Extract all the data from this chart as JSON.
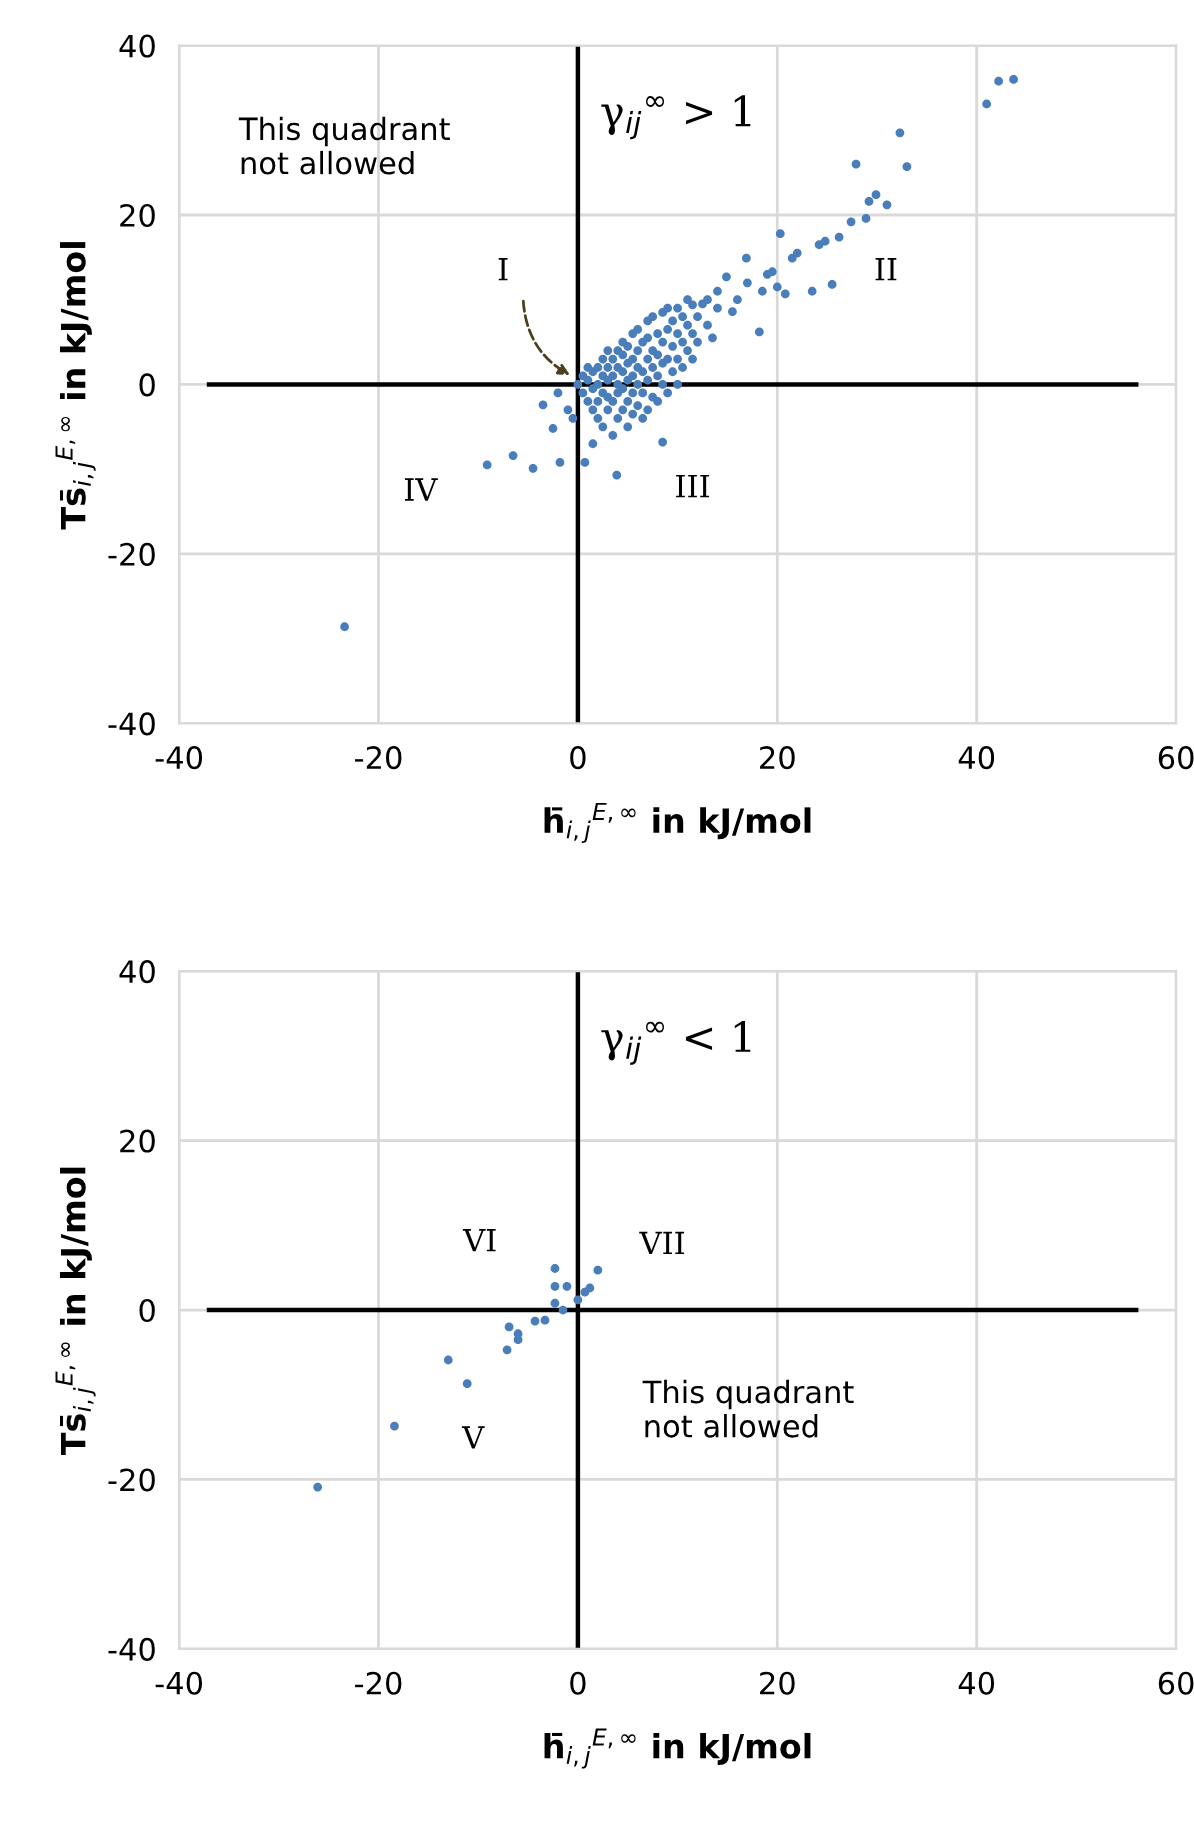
{
  "chart_data": [
    {
      "type": "scatter",
      "xlabel": "h̄$_{i,j}$$^{E,∞}$ in kJ/mol",
      "ylabel": "Ts̄$_{i,j}$$^{E,∞}$ in kJ/mol",
      "xlim": [
        -40,
        60
      ],
      "xticks": [
        -40,
        -20,
        0,
        20,
        40,
        60
      ],
      "ylim": [
        -40,
        40
      ],
      "yticks": [
        -40,
        -20,
        0,
        20,
        40
      ],
      "grid": true,
      "marker": "circle",
      "annotations": [
        "γ$_{ij}$$^{∞}$ > 1",
        "This quadrant\nnot allowed",
        "I",
        "II",
        "III",
        "IV"
      ],
      "series": [
        {
          "color": "#4a7ebb",
          "x": [
            0,
            0.5,
            0.5,
            1,
            1,
            1,
            1.5,
            1.5,
            1.5,
            2,
            2,
            2,
            2,
            2.5,
            2.5,
            2.5,
            2.5,
            3,
            3,
            3,
            3,
            3,
            3.5,
            3.5,
            3.5,
            3.5,
            4,
            4,
            4,
            4,
            4,
            4.5,
            4.5,
            4.5,
            4.5,
            4.5,
            5,
            5,
            5,
            5,
            5,
            5.5,
            5.5,
            5.5,
            5.5,
            5.5,
            6,
            6,
            6,
            6,
            6,
            6.5,
            6.5,
            6.5,
            6.5,
            7,
            7,
            7,
            7,
            7,
            7.5,
            7.5,
            7.5,
            7.5,
            8,
            8,
            8,
            8,
            8.5,
            8.5,
            8.5,
            8.5,
            9,
            9,
            9,
            9,
            9.5,
            9.5,
            9.5,
            10,
            10,
            10,
            10,
            10.5,
            10.5,
            10.5,
            11,
            11,
            11,
            11.5,
            11.5,
            12,
            12,
            12.5,
            13,
            13,
            13.5,
            14,
            14,
            15.5,
            14.9,
            16,
            16.9,
            17,
            18.2,
            18.5,
            19,
            19.5,
            20,
            20.3,
            20.8,
            21.5,
            22,
            23.5,
            24.2,
            24.8,
            25.5,
            26.2,
            27.4,
            27.9,
            28.9,
            29.2,
            29.9,
            31,
            32.3,
            33,
            41,
            42.2,
            43.7,
            11.5,
            -9.1,
            -6.5,
            -4.5,
            -1.8,
            0.7,
            3.9,
            8.5,
            1.5,
            -2.5,
            -3.5,
            -1,
            -2,
            -0.5,
            -23.4
          ],
          "values": [
            0,
            -1,
            1,
            -2,
            0.5,
            2,
            -3,
            -0.5,
            1.5,
            -4,
            -2,
            0,
            2,
            -5,
            -1,
            1,
            3,
            -3,
            -1.5,
            0.5,
            2,
            4,
            -6,
            -2,
            1,
            3,
            -4,
            -1,
            0,
            2,
            4,
            -3,
            -0.5,
            1.5,
            3.5,
            5,
            -5,
            -2,
            0.5,
            2.5,
            4.5,
            -3.5,
            -1,
            1,
            3,
            6,
            -2.5,
            0,
            2,
            4,
            6.5,
            -4,
            -1,
            1.5,
            5,
            -3,
            0.5,
            3,
            5.5,
            7.5,
            -1.5,
            2,
            4,
            8,
            -2,
            1,
            3.5,
            6,
            0,
            2.5,
            5,
            8.5,
            -1,
            3,
            6.5,
            9,
            1.5,
            4.5,
            7.5,
            0,
            3,
            6,
            9,
            2,
            5,
            8,
            4,
            7,
            10,
            3,
            6,
            5,
            8,
            9.5,
            7,
            10,
            5.5,
            9,
            11,
            8.6,
            12.7,
            10,
            14.9,
            12,
            6.2,
            11,
            13,
            13.3,
            11.5,
            17.8,
            10.7,
            14.9,
            15.5,
            11,
            16.5,
            16.9,
            11.8,
            17.4,
            19.2,
            26,
            19.6,
            21.6,
            22.4,
            21.2,
            29.7,
            25.7,
            33.1,
            35.8,
            36,
            9.4,
            -9.5,
            -8.4,
            -9.9,
            -9.2,
            -9.2,
            -10.7,
            -6.8,
            -7,
            -5.2,
            -2.4,
            -3,
            -1,
            -4,
            -28.6
          ]
        }
      ]
    },
    {
      "type": "scatter",
      "xlabel": "h̄$_{i,j}$$^{E,∞}$ in kJ/mol",
      "ylabel": "Ts̄$_{i,j}$$^{E,∞}$ in kJ/mol",
      "xlim": [
        -40,
        60
      ],
      "xticks": [
        -40,
        -20,
        0,
        20,
        40,
        60
      ],
      "ylim": [
        -40,
        40
      ],
      "yticks": [
        -40,
        -20,
        0,
        20,
        40
      ],
      "grid": true,
      "marker": "circle",
      "annotations": [
        "γ$_{ij}$$^{∞}$ < 1",
        "VI",
        "VII",
        "V",
        "This quadrant\nnot allowed"
      ],
      "series": [
        {
          "color": "#4a7ebb",
          "x": [
            -2.3,
            -2.3,
            -1.1,
            2,
            1.2,
            0.7,
            0,
            -1.5,
            -2.3,
            -3.3,
            -4.3,
            -6.9,
            -6,
            -6,
            -7.1,
            -13,
            -11.1,
            -18.4,
            -26.1
          ],
          "values": [
            4.9,
            2.8,
            2.8,
            4.7,
            2.6,
            2.1,
            1.2,
            0,
            0.8,
            -1.2,
            -1.3,
            -2,
            -2.8,
            -3.5,
            -4.7,
            -5.9,
            -8.7,
            -13.7,
            -20.9
          ]
        }
      ]
    }
  ]
}
